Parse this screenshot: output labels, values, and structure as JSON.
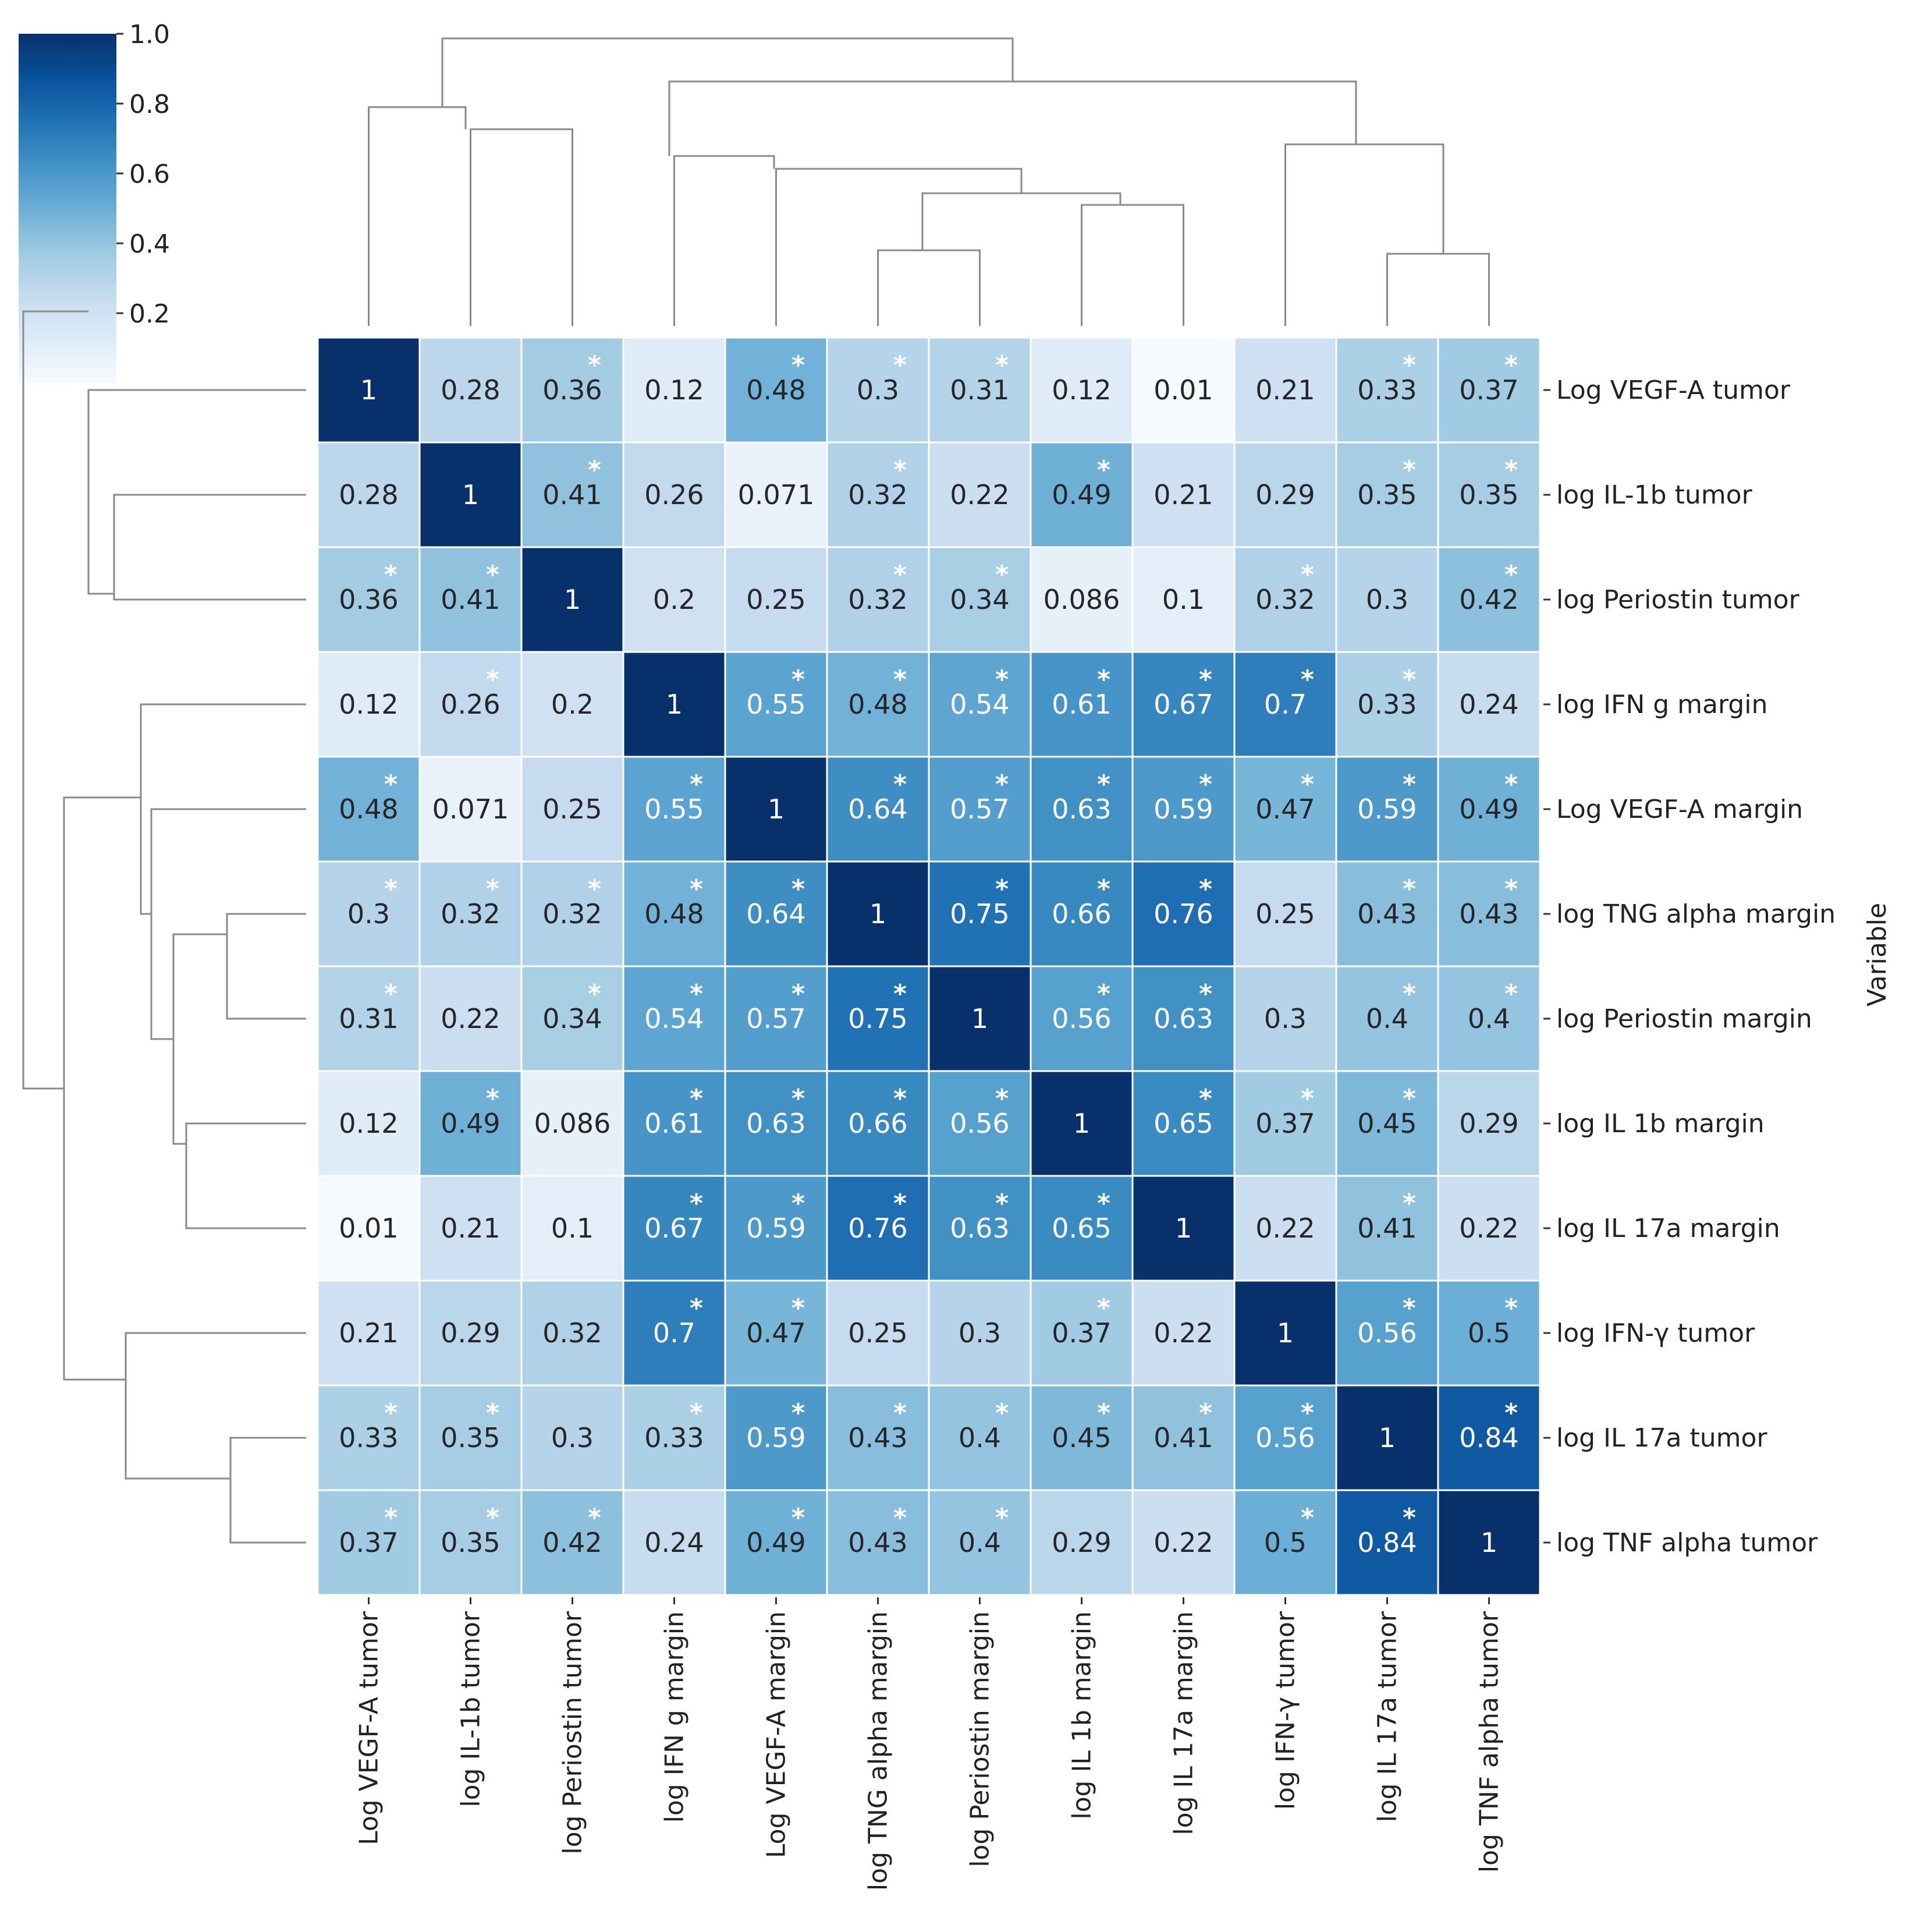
{
  "chart_data": {
    "type": "heatmap",
    "subtype": "clustered correlation matrix",
    "labels": [
      "Log VEGF-A tumor",
      "log IL-1b tumor",
      "log Periostin tumor",
      "log IFN g margin",
      "Log VEGF-A margin",
      "log TNG alpha margin",
      "log Periostin margin",
      "log IL 1b margin",
      "log IL 17a margin",
      "log IFN-γ tumor",
      "log IL 17a tumor",
      "log TNF alpha tumor"
    ],
    "values": [
      [
        "1",
        "0.28",
        "0.36",
        "0.12",
        "0.48",
        "0.3",
        "0.31",
        "0.12",
        "0.01",
        "0.21",
        "0.33",
        "0.37"
      ],
      [
        "0.28",
        "1",
        "0.41",
        "0.26",
        "0.071",
        "0.32",
        "0.22",
        "0.49",
        "0.21",
        "0.29",
        "0.35",
        "0.35"
      ],
      [
        "0.36",
        "0.41",
        "1",
        "0.2",
        "0.25",
        "0.32",
        "0.34",
        "0.086",
        "0.1",
        "0.32",
        "0.3",
        "0.42"
      ],
      [
        "0.12",
        "0.26",
        "0.2",
        "1",
        "0.55",
        "0.48",
        "0.54",
        "0.61",
        "0.67",
        "0.7",
        "0.33",
        "0.24"
      ],
      [
        "0.48",
        "0.071",
        "0.25",
        "0.55",
        "1",
        "0.64",
        "0.57",
        "0.63",
        "0.59",
        "0.47",
        "0.59",
        "0.49"
      ],
      [
        "0.3",
        "0.32",
        "0.32",
        "0.48",
        "0.64",
        "1",
        "0.75",
        "0.66",
        "0.76",
        "0.25",
        "0.43",
        "0.43"
      ],
      [
        "0.31",
        "0.22",
        "0.34",
        "0.54",
        "0.57",
        "0.75",
        "1",
        "0.56",
        "0.63",
        "0.3",
        "0.4",
        "0.4"
      ],
      [
        "0.12",
        "0.49",
        "0.086",
        "0.61",
        "0.63",
        "0.66",
        "0.56",
        "1",
        "0.65",
        "0.37",
        "0.45",
        "0.29"
      ],
      [
        "0.01",
        "0.21",
        "0.1",
        "0.67",
        "0.59",
        "0.76",
        "0.63",
        "0.65",
        "1",
        "0.22",
        "0.41",
        "0.22"
      ],
      [
        "0.21",
        "0.29",
        "0.32",
        "0.7",
        "0.47",
        "0.25",
        "0.3",
        "0.37",
        "0.22",
        "1",
        "0.56",
        "0.5"
      ],
      [
        "0.33",
        "0.35",
        "0.3",
        "0.33",
        "0.59",
        "0.43",
        "0.4",
        "0.45",
        "0.41",
        "0.56",
        "1",
        "0.84"
      ],
      [
        "0.37",
        "0.35",
        "0.42",
        "0.24",
        "0.49",
        "0.43",
        "0.4",
        "0.29",
        "0.22",
        "0.5",
        "0.84",
        "1"
      ]
    ],
    "significant": [
      [
        0,
        0,
        1,
        0,
        1,
        1,
        1,
        0,
        0,
        0,
        1,
        1
      ],
      [
        0,
        0,
        1,
        0,
        0,
        1,
        0,
        1,
        0,
        0,
        1,
        1
      ],
      [
        1,
        1,
        0,
        0,
        0,
        1,
        1,
        0,
        0,
        1,
        0,
        1
      ],
      [
        0,
        1,
        0,
        0,
        1,
        1,
        1,
        1,
        1,
        1,
        1,
        0
      ],
      [
        1,
        0,
        0,
        1,
        0,
        1,
        1,
        1,
        1,
        1,
        1,
        1
      ],
      [
        1,
        1,
        1,
        1,
        1,
        0,
        1,
        1,
        1,
        0,
        1,
        1
      ],
      [
        1,
        0,
        1,
        1,
        1,
        1,
        0,
        1,
        1,
        0,
        1,
        1
      ],
      [
        0,
        1,
        0,
        1,
        1,
        1,
        1,
        0,
        1,
        1,
        1,
        0
      ],
      [
        0,
        0,
        0,
        1,
        1,
        1,
        1,
        1,
        0,
        0,
        1,
        0
      ],
      [
        0,
        0,
        0,
        1,
        1,
        0,
        0,
        1,
        0,
        0,
        1,
        1
      ],
      [
        1,
        1,
        0,
        1,
        1,
        1,
        1,
        1,
        1,
        1,
        0,
        1
      ],
      [
        1,
        1,
        1,
        0,
        1,
        1,
        1,
        0,
        0,
        1,
        1,
        0
      ]
    ],
    "significance_marker": "*",
    "colorbar": {
      "min": 0.0,
      "max": 1.0,
      "ticks": [
        "1.0",
        "0.8",
        "0.6",
        "0.4",
        "0.2"
      ],
      "tick_values": [
        1.0,
        0.8,
        0.6,
        0.4,
        0.2
      ],
      "colormap": "Blues",
      "placement": "top-left"
    },
    "ylabel": "Variable",
    "dendrogram_order": "rows and columns clustered; same ordering on both axes"
  }
}
